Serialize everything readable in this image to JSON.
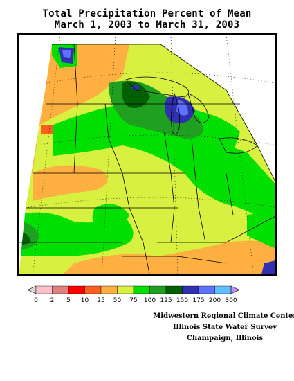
{
  "title": {
    "line1": "Total Precipitation Percent of Mean",
    "line2": "March 1, 2003 to March 31, 2003"
  },
  "legend": {
    "colors": [
      "#d8d8d8",
      "#ffc0cb",
      "#e08080",
      "#ff0000",
      "#ff6020",
      "#ffb040",
      "#d8f040",
      "#00e000",
      "#20a020",
      "#006000",
      "#3030b0",
      "#6070ff",
      "#60c0ff",
      "#c090ff"
    ],
    "labels": [
      "0",
      "2",
      "5",
      "10",
      "25",
      "50",
      "75",
      "100",
      "125",
      "150",
      "175",
      "200",
      "300"
    ]
  },
  "credits": {
    "line1": "Midwestern Regional Climate Center",
    "line2": "Illinois State Water Survey",
    "line3": "Champaign, Illinois"
  }
}
